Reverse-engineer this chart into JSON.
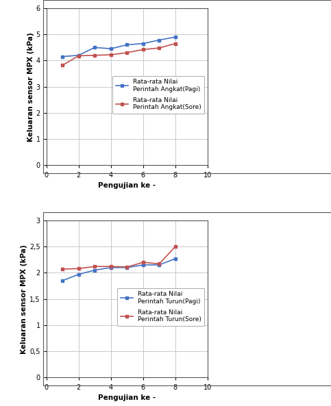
{
  "chart1": {
    "x": [
      1,
      2,
      3,
      4,
      5,
      6,
      7,
      8
    ],
    "pagi": [
      4.15,
      4.2,
      4.5,
      4.45,
      4.6,
      4.65,
      4.78,
      4.9
    ],
    "sore": [
      3.82,
      4.18,
      4.2,
      4.22,
      4.3,
      4.42,
      4.48,
      4.65
    ],
    "ylabel": "Keluaran sensor MPX (kPa)",
    "xlabel": "Pengujian ke -",
    "ylim": [
      0,
      6
    ],
    "yticks": [
      0,
      1,
      2,
      3,
      4,
      5,
      6
    ],
    "xlim": [
      0,
      10
    ],
    "xticks": [
      0,
      2,
      4,
      6,
      8,
      10
    ],
    "legend_pagi": "Rata-rata Nilai\nPerintah Angkat(Pagi)",
    "legend_sore": "Rata-rata Nilai\nPerintah Angkat(Sore)",
    "color_pagi": "#4472C4",
    "color_sore": "#C0504D"
  },
  "chart2": {
    "x": [
      1,
      2,
      3,
      4,
      5,
      6,
      7,
      8
    ],
    "pagi": [
      1.85,
      1.97,
      2.05,
      2.1,
      2.1,
      2.15,
      2.15,
      2.27
    ],
    "sore": [
      2.07,
      2.08,
      2.12,
      2.12,
      2.11,
      2.2,
      2.17,
      2.5
    ],
    "ylabel": "Keluaran sensor MPX (kPa)",
    "xlabel": "Pengujian ke -",
    "ylim": [
      0,
      3
    ],
    "yticks": [
      0,
      0.5,
      1,
      1.5,
      2,
      2.5,
      3
    ],
    "xlim": [
      0,
      10
    ],
    "xticks": [
      0,
      2,
      4,
      6,
      8,
      10
    ],
    "legend_pagi": "Rata-rata Nilai\nPerintah Turun(Pagi)",
    "legend_sore": "Rata-rata Nilai\nPerintah Turun(Sore)",
    "color_pagi": "#4472C4",
    "color_sore": "#C0504D"
  },
  "bg_color": "#ffffff",
  "border_color": "#000000",
  "grid_color": "#c0c0c0"
}
